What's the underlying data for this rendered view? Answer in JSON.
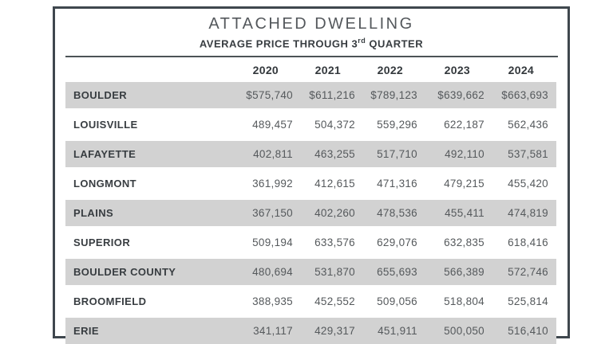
{
  "header": {
    "title": "ATTACHED DWELLING",
    "subtitle_prefix": "AVERAGE PRICE THROUGH 3",
    "subtitle_sup": "rd",
    "subtitle_suffix": " QUARTER"
  },
  "table": {
    "year_headers": [
      "2020",
      "2021",
      "2022",
      "2023",
      "2024"
    ],
    "rows": [
      {
        "label": "BOULDER",
        "shaded": true,
        "values": [
          "$575,740",
          "$611,216",
          "$789,123",
          "$639,662",
          "$663,693"
        ]
      },
      {
        "label": "LOUISVILLE",
        "shaded": false,
        "values": [
          "489,457",
          "504,372",
          "559,296",
          "622,187",
          "562,436"
        ]
      },
      {
        "label": "LAFAYETTE",
        "shaded": true,
        "values": [
          "402,811",
          "463,255",
          "517,710",
          "492,110",
          "537,581"
        ]
      },
      {
        "label": "LONGMONT",
        "shaded": false,
        "values": [
          "361,992",
          "412,615",
          "471,316",
          "479,215",
          "455,420"
        ]
      },
      {
        "label": "PLAINS",
        "shaded": true,
        "values": [
          "367,150",
          "402,260",
          "478,536",
          "455,411",
          "474,819"
        ]
      },
      {
        "label": "SUPERIOR",
        "shaded": false,
        "values": [
          "509,194",
          "633,576",
          "629,076",
          "632,835",
          "618,416"
        ]
      },
      {
        "label": "BOULDER COUNTY",
        "shaded": true,
        "values": [
          "480,694",
          "531,870",
          "655,693",
          "566,389",
          "572,746"
        ]
      },
      {
        "label": "BROOMFIELD",
        "shaded": false,
        "values": [
          "388,935",
          "452,552",
          "509,056",
          "518,804",
          "525,814"
        ]
      },
      {
        "label": "ERIE",
        "shaded": true,
        "values": [
          "341,117",
          "429,317",
          "451,911",
          "500,050",
          "516,410"
        ]
      }
    ]
  },
  "colors": {
    "frame_border": "#3f474e",
    "row_shade": "#d2d2d2",
    "heading_text": "#383d41",
    "number_text": "#55595c",
    "title_text": "#54585c"
  },
  "chart_data": {
    "type": "table",
    "title": "ATTACHED DWELLING",
    "subtitle": "AVERAGE PRICE THROUGH 3rd QUARTER",
    "categories": [
      "2020",
      "2021",
      "2022",
      "2023",
      "2024"
    ],
    "series": [
      {
        "name": "BOULDER",
        "values": [
          575740,
          611216,
          789123,
          639662,
          663693
        ]
      },
      {
        "name": "LOUISVILLE",
        "values": [
          489457,
          504372,
          559296,
          622187,
          562436
        ]
      },
      {
        "name": "LAFAYETTE",
        "values": [
          402811,
          463255,
          517710,
          492110,
          537581
        ]
      },
      {
        "name": "LONGMONT",
        "values": [
          361992,
          412615,
          471316,
          479215,
          455420
        ]
      },
      {
        "name": "PLAINS",
        "values": [
          367150,
          402260,
          478536,
          455411,
          474819
        ]
      },
      {
        "name": "SUPERIOR",
        "values": [
          509194,
          633576,
          629076,
          632835,
          618416
        ]
      },
      {
        "name": "BOULDER COUNTY",
        "values": [
          480694,
          531870,
          655693,
          566389,
          572746
        ]
      },
      {
        "name": "BROOMFIELD",
        "values": [
          388935,
          452552,
          509056,
          518804,
          525814
        ]
      },
      {
        "name": "ERIE",
        "values": [
          341117,
          429317,
          451911,
          500050,
          516410
        ]
      }
    ],
    "units": "USD",
    "notes": "Dollar sign shown only on first data row"
  }
}
